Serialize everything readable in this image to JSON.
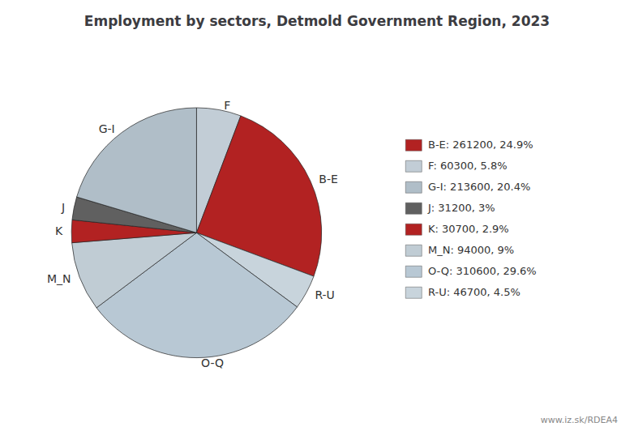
{
  "chart_data": {
    "type": "pie",
    "title": "Employment by sectors, Detmold Government Region, 2023",
    "categories": [
      "F",
      "B-E",
      "R-U",
      "O-Q",
      "M_N",
      "K",
      "J",
      "G-I"
    ],
    "values": [
      60300,
      261200,
      46700,
      310600,
      94000,
      30700,
      31200,
      213600
    ],
    "colors": [
      "#c2cdd6",
      "#b22222",
      "#c8d4dc",
      "#b8c8d4",
      "#c0ccd4",
      "#b22222",
      "#606060",
      "#b0bec8"
    ],
    "legend": "right",
    "legend_entries": [
      {
        "label": "B-E: 261200, 24.9%",
        "color": "#b22222"
      },
      {
        "label": "F: 60300, 5.8%",
        "color": "#c2cdd6"
      },
      {
        "label": "G-I: 213600, 20.4%",
        "color": "#b0bec8"
      },
      {
        "label": "J: 31200, 3%",
        "color": "#606060"
      },
      {
        "label": "K: 30700, 2.9%",
        "color": "#b22222"
      },
      {
        "label": "M_N: 94000, 9%",
        "color": "#c0ccd4"
      },
      {
        "label": "O-Q: 310600, 29.6%",
        "color": "#b8c8d4"
      },
      {
        "label": "R-U: 46700, 4.5%",
        "color": "#c8d4dc"
      }
    ],
    "watermark": "www.iz.sk/RDEA4"
  }
}
